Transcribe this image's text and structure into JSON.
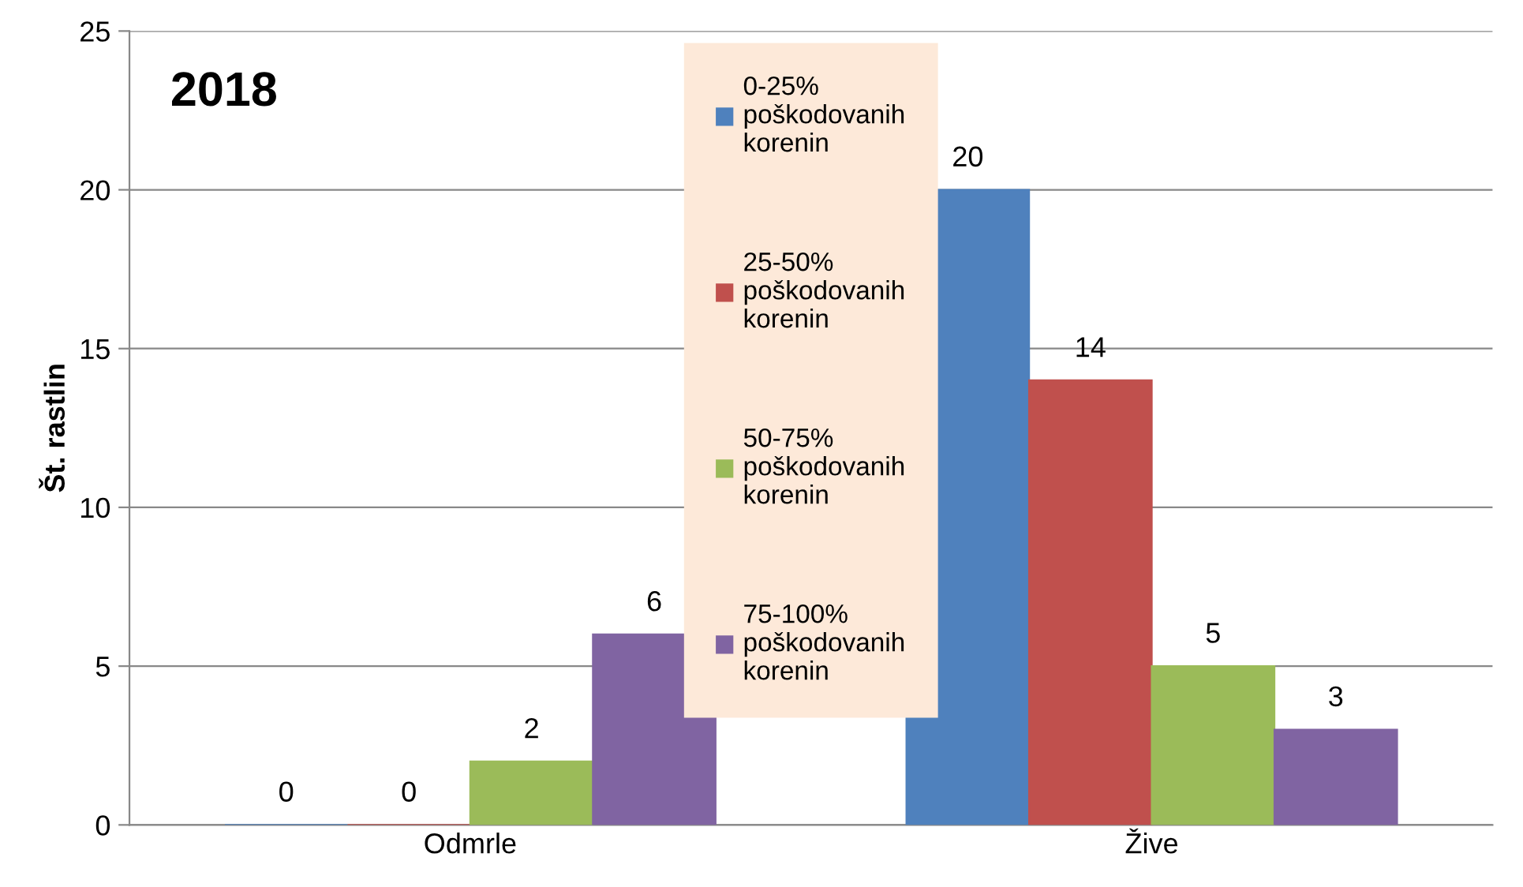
{
  "chart_data": {
    "type": "bar",
    "title": "2018",
    "ylabel": "Št. rastlin",
    "categories": [
      "Odmrle",
      "Žive"
    ],
    "series": [
      {
        "name": "0-25% poškodovanih korenin",
        "color": "#4f81bd",
        "values": [
          0,
          20
        ]
      },
      {
        "name": "25-50% poškodovanih korenin",
        "color": "#c0504d",
        "values": [
          0,
          14
        ]
      },
      {
        "name": "50-75% poškodovanih korenin",
        "color": "#9bbb59",
        "values": [
          2,
          5
        ]
      },
      {
        "name": "75-100% poškodovanih korenin",
        "color": "#8064a2",
        "values": [
          6,
          3
        ]
      }
    ],
    "ylim": [
      0,
      25
    ],
    "yticks": [
      0,
      5,
      10,
      15,
      20,
      25
    ],
    "grid": "y",
    "legend": "top",
    "data_labels": true
  }
}
